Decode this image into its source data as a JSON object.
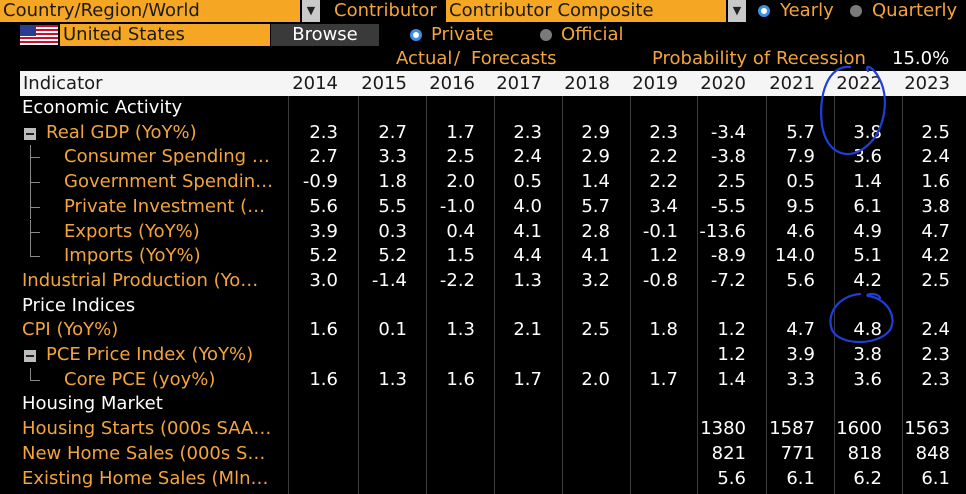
{
  "controls": {
    "country_label": "Country/Region/World",
    "contributor_label": "Contributor",
    "contributor_value": "Contributor Composite",
    "frequency": [
      {
        "label": "Yearly",
        "selected": true
      },
      {
        "label": "Quarterly",
        "selected": false
      }
    ],
    "country_value": "United States",
    "browse_label": "Browse",
    "source": [
      {
        "label": "Private",
        "selected": true
      },
      {
        "label": "Official",
        "selected": false
      }
    ]
  },
  "subheader": {
    "actual": "Actual",
    "separator": "/",
    "forecasts": "Forecasts",
    "recession_label": "Probability of Recession",
    "recession_value": "15.0%"
  },
  "table": {
    "indicator_header": "Indicator",
    "years": [
      "2014",
      "2015",
      "2016",
      "2017",
      "2018",
      "2019",
      "2020",
      "2021",
      "2022",
      "2023"
    ],
    "rows": [
      {
        "label": "Economic Activity",
        "type": "section",
        "values": []
      },
      {
        "label": "Real GDP (YoY%)",
        "type": "parent",
        "values": [
          "2.3",
          "2.7",
          "1.7",
          "2.3",
          "2.9",
          "2.3",
          "-3.4",
          "5.7",
          "3.8",
          "2.5"
        ]
      },
      {
        "label": "Consumer Spending …",
        "type": "child",
        "values": [
          "2.7",
          "3.3",
          "2.5",
          "2.4",
          "2.9",
          "2.2",
          "-3.8",
          "7.9",
          "3.6",
          "2.4"
        ]
      },
      {
        "label": "Government Spendin…",
        "type": "child",
        "values": [
          "-0.9",
          "1.8",
          "2.0",
          "0.5",
          "1.4",
          "2.2",
          "2.5",
          "0.5",
          "1.4",
          "1.6"
        ]
      },
      {
        "label": "Private Investment (…",
        "type": "child",
        "values": [
          "5.6",
          "5.5",
          "-1.0",
          "4.0",
          "5.7",
          "3.4",
          "-5.5",
          "9.5",
          "6.1",
          "3.8"
        ]
      },
      {
        "label": "Exports (YoY%)",
        "type": "child",
        "values": [
          "3.9",
          "0.3",
          "0.4",
          "4.1",
          "2.8",
          "-0.1",
          "-13.6",
          "4.6",
          "4.9",
          "4.7"
        ]
      },
      {
        "label": "Imports (YoY%)",
        "type": "child-last",
        "values": [
          "5.2",
          "5.2",
          "1.5",
          "4.4",
          "4.1",
          "1.2",
          "-8.9",
          "14.0",
          "5.1",
          "4.2"
        ]
      },
      {
        "label": "Industrial Production (Yo…",
        "type": "item",
        "values": [
          "3.0",
          "-1.4",
          "-2.2",
          "1.3",
          "3.2",
          "-0.8",
          "-7.2",
          "5.6",
          "4.2",
          "2.5"
        ]
      },
      {
        "label": "Price Indices",
        "type": "section",
        "values": []
      },
      {
        "label": "CPI (YoY%)",
        "type": "item",
        "values": [
          "1.6",
          "0.1",
          "1.3",
          "2.1",
          "2.5",
          "1.8",
          "1.2",
          "4.7",
          "4.8",
          "2.4"
        ]
      },
      {
        "label": "PCE Price Index (YoY%)",
        "type": "parent",
        "values": [
          "",
          "",
          "",
          "",
          "",
          "",
          "1.2",
          "3.9",
          "3.8",
          "2.3"
        ]
      },
      {
        "label": "Core PCE (yoy%)",
        "type": "child-last",
        "values": [
          "1.6",
          "1.3",
          "1.6",
          "1.7",
          "2.0",
          "1.7",
          "1.4",
          "3.3",
          "3.6",
          "2.3"
        ]
      },
      {
        "label": "Housing Market",
        "type": "section",
        "values": []
      },
      {
        "label": "Housing Starts (000s SAA…",
        "type": "item",
        "values": [
          "",
          "",
          "",
          "",
          "",
          "",
          "1380",
          "1587",
          "1600",
          "1563"
        ]
      },
      {
        "label": "New Home Sales (000s S…",
        "type": "item",
        "values": [
          "",
          "",
          "",
          "",
          "",
          "",
          "821",
          "771",
          "818",
          "848"
        ]
      },
      {
        "label": "Existing Home Sales (Mln…",
        "type": "item",
        "values": [
          "",
          "",
          "",
          "",
          "",
          "",
          "5.6",
          "6.1",
          "6.2",
          "6.1"
        ]
      }
    ]
  },
  "colors": {
    "accent": "#f5a623",
    "text_orange": "#f3a43c",
    "annotation": "#1f3fd6",
    "radio_selected": "#3d8fe6"
  }
}
